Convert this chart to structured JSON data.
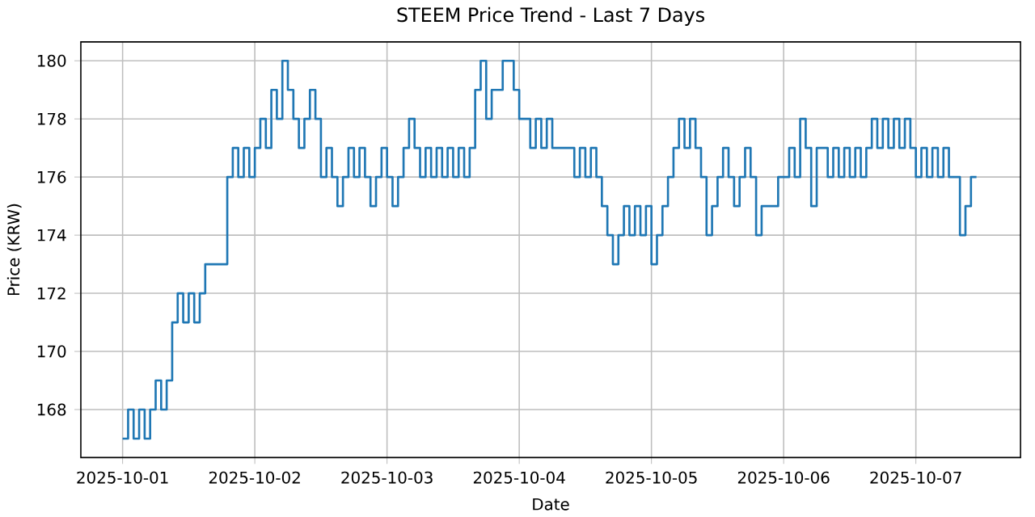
{
  "chart_data": {
    "type": "step",
    "title": "STEEM Price Trend - Last 7 Days",
    "xlabel": "Date",
    "ylabel": "Price (KRW)",
    "xlim": [
      "2025-09-30T16:25",
      "2025-10-07T19:00"
    ],
    "xticks": [
      "2025-10-01",
      "2025-10-02",
      "2025-10-03",
      "2025-10-04",
      "2025-10-05",
      "2025-10-06",
      "2025-10-07"
    ],
    "ylim": [
      166.35,
      180.65
    ],
    "yticks": [
      168,
      170,
      172,
      174,
      176,
      178,
      180
    ],
    "grid": true,
    "series": [
      {
        "color": "#1f77b4",
        "x": [
          "2025-10-01T00:00",
          "2025-10-01T01:00",
          "2025-10-01T02:00",
          "2025-10-01T03:00",
          "2025-10-01T04:00",
          "2025-10-01T05:00",
          "2025-10-01T06:00",
          "2025-10-01T07:00",
          "2025-10-01T08:00",
          "2025-10-01T09:00",
          "2025-10-01T10:00",
          "2025-10-01T11:00",
          "2025-10-01T12:00",
          "2025-10-01T13:00",
          "2025-10-01T14:00",
          "2025-10-01T15:00",
          "2025-10-01T16:00",
          "2025-10-01T17:00",
          "2025-10-01T18:00",
          "2025-10-01T19:00",
          "2025-10-01T20:00",
          "2025-10-01T21:00",
          "2025-10-01T22:00",
          "2025-10-01T23:00",
          "2025-10-02T00:00",
          "2025-10-02T01:00",
          "2025-10-02T02:00",
          "2025-10-02T03:00",
          "2025-10-02T04:00",
          "2025-10-02T05:00",
          "2025-10-02T06:00",
          "2025-10-02T07:00",
          "2025-10-02T08:00",
          "2025-10-02T09:00",
          "2025-10-02T10:00",
          "2025-10-02T11:00",
          "2025-10-02T12:00",
          "2025-10-02T13:00",
          "2025-10-02T14:00",
          "2025-10-02T15:00",
          "2025-10-02T16:00",
          "2025-10-02T17:00",
          "2025-10-02T18:00",
          "2025-10-02T19:00",
          "2025-10-02T20:00",
          "2025-10-02T21:00",
          "2025-10-02T22:00",
          "2025-10-02T23:00",
          "2025-10-03T00:00",
          "2025-10-03T01:00",
          "2025-10-03T02:00",
          "2025-10-03T03:00",
          "2025-10-03T04:00",
          "2025-10-03T05:00",
          "2025-10-03T06:00",
          "2025-10-03T07:00",
          "2025-10-03T08:00",
          "2025-10-03T09:00",
          "2025-10-03T10:00",
          "2025-10-03T11:00",
          "2025-10-03T12:00",
          "2025-10-03T13:00",
          "2025-10-03T14:00",
          "2025-10-03T15:00",
          "2025-10-03T16:00",
          "2025-10-03T17:00",
          "2025-10-03T18:00",
          "2025-10-03T19:00",
          "2025-10-03T20:00",
          "2025-10-03T21:00",
          "2025-10-03T22:00",
          "2025-10-03T23:00",
          "2025-10-04T00:00",
          "2025-10-04T01:00",
          "2025-10-04T02:00",
          "2025-10-04T03:00",
          "2025-10-04T04:00",
          "2025-10-04T05:00",
          "2025-10-04T06:00",
          "2025-10-04T07:00",
          "2025-10-04T08:00",
          "2025-10-04T09:00",
          "2025-10-04T10:00",
          "2025-10-04T11:00",
          "2025-10-04T12:00",
          "2025-10-04T13:00",
          "2025-10-04T14:00",
          "2025-10-04T15:00",
          "2025-10-04T16:00",
          "2025-10-04T17:00",
          "2025-10-04T18:00",
          "2025-10-04T19:00",
          "2025-10-04T20:00",
          "2025-10-04T21:00",
          "2025-10-04T22:00",
          "2025-10-04T23:00",
          "2025-10-05T00:00",
          "2025-10-05T01:00",
          "2025-10-05T02:00",
          "2025-10-05T03:00",
          "2025-10-05T04:00",
          "2025-10-05T05:00",
          "2025-10-05T06:00",
          "2025-10-05T07:00",
          "2025-10-05T08:00",
          "2025-10-05T09:00",
          "2025-10-05T10:00",
          "2025-10-05T11:00",
          "2025-10-05T12:00",
          "2025-10-05T13:00",
          "2025-10-05T14:00",
          "2025-10-05T15:00",
          "2025-10-05T16:00",
          "2025-10-05T17:00",
          "2025-10-05T18:00",
          "2025-10-05T19:00",
          "2025-10-05T20:00",
          "2025-10-05T21:00",
          "2025-10-05T22:00",
          "2025-10-05T23:00",
          "2025-10-06T00:00",
          "2025-10-06T01:00",
          "2025-10-06T02:00",
          "2025-10-06T03:00",
          "2025-10-06T04:00",
          "2025-10-06T05:00",
          "2025-10-06T06:00",
          "2025-10-06T07:00",
          "2025-10-06T08:00",
          "2025-10-06T09:00",
          "2025-10-06T10:00",
          "2025-10-06T11:00",
          "2025-10-06T12:00",
          "2025-10-06T13:00",
          "2025-10-06T14:00",
          "2025-10-06T15:00",
          "2025-10-06T16:00",
          "2025-10-06T17:00",
          "2025-10-06T18:00",
          "2025-10-06T19:00",
          "2025-10-06T20:00",
          "2025-10-06T21:00",
          "2025-10-06T22:00",
          "2025-10-06T23:00",
          "2025-10-07T00:00",
          "2025-10-07T01:00",
          "2025-10-07T02:00",
          "2025-10-07T03:00",
          "2025-10-07T04:00",
          "2025-10-07T05:00",
          "2025-10-07T06:00",
          "2025-10-07T07:00",
          "2025-10-07T08:00",
          "2025-10-07T09:00",
          "2025-10-07T10:00",
          "2025-10-07T11:00"
        ],
        "values": [
          167,
          168,
          167,
          168,
          167,
          168,
          169,
          168,
          169,
          171,
          172,
          171,
          172,
          171,
          172,
          173,
          173,
          173,
          173,
          176,
          177,
          176,
          177,
          176,
          177,
          178,
          177,
          179,
          178,
          180,
          179,
          178,
          177,
          178,
          179,
          178,
          176,
          177,
          176,
          175,
          176,
          177,
          176,
          177,
          176,
          175,
          176,
          177,
          176,
          175,
          176,
          177,
          178,
          177,
          176,
          177,
          176,
          177,
          176,
          177,
          176,
          177,
          176,
          177,
          179,
          180,
          178,
          179,
          179,
          180,
          180,
          179,
          178,
          178,
          177,
          178,
          177,
          178,
          177,
          177,
          177,
          177,
          176,
          177,
          176,
          177,
          176,
          175,
          174,
          173,
          174,
          175,
          174,
          175,
          174,
          175,
          173,
          174,
          175,
          176,
          177,
          178,
          177,
          178,
          177,
          176,
          174,
          175,
          176,
          177,
          176,
          175,
          176,
          177,
          176,
          174,
          175,
          175,
          175,
          176,
          176,
          177,
          176,
          178,
          177,
          175,
          177,
          177,
          176,
          177,
          176,
          177,
          176,
          177,
          176,
          177,
          178,
          177,
          178,
          177,
          178,
          177,
          178,
          177,
          176,
          177,
          176,
          177,
          176,
          177,
          176,
          176,
          174,
          175,
          176,
          176
        ]
      }
    ]
  }
}
